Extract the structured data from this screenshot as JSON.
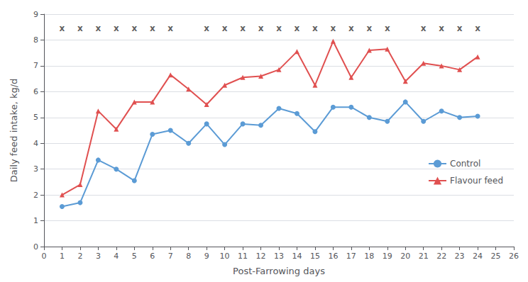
{
  "chart_data": {
    "type": "line",
    "x_label": "Post-Farrowing days",
    "y_label": "Daily feed intake, kg/d",
    "xlim": [
      0,
      26
    ],
    "xticks": [
      0,
      1,
      2,
      3,
      4,
      5,
      6,
      7,
      8,
      9,
      10,
      11,
      12,
      13,
      14,
      15,
      16,
      17,
      18,
      19,
      20,
      21,
      22,
      23,
      24,
      25,
      26
    ],
    "ylim": [
      0,
      9
    ],
    "yticks": [
      0,
      1,
      2,
      3,
      4,
      5,
      6,
      7,
      8,
      9
    ],
    "grid": true,
    "legend": "lower right",
    "series": [
      {
        "name": "Control",
        "color": "#5b9bd5",
        "marker": "circle",
        "x": [
          1,
          2,
          3,
          4,
          5,
          6,
          7,
          8,
          9,
          10,
          11,
          12,
          13,
          14,
          15,
          16,
          17,
          18,
          19,
          20,
          21,
          22,
          23,
          24
        ],
        "values": [
          1.55,
          1.7,
          3.35,
          3.0,
          2.55,
          4.35,
          4.5,
          4.0,
          4.75,
          3.95,
          4.75,
          4.7,
          5.35,
          5.15,
          4.45,
          5.4,
          5.4,
          5.0,
          4.85,
          5.6,
          4.85,
          5.25,
          5.0,
          5.05
        ]
      },
      {
        "name": "Flavour feed",
        "color": "#e05050",
        "marker": "triangle",
        "x": [
          1,
          2,
          3,
          4,
          5,
          6,
          7,
          8,
          9,
          10,
          11,
          12,
          13,
          14,
          15,
          16,
          17,
          18,
          19,
          20,
          21,
          22,
          23,
          24
        ],
        "values": [
          2.0,
          2.4,
          5.25,
          4.55,
          5.6,
          5.6,
          6.65,
          6.1,
          5.5,
          6.25,
          6.55,
          6.6,
          6.85,
          7.55,
          6.25,
          7.95,
          6.55,
          7.6,
          7.65,
          6.4,
          7.1,
          7.0,
          6.85,
          7.35
        ]
      }
    ],
    "annotations": [
      {
        "text": "x",
        "x": 1,
        "y": 8.45
      },
      {
        "text": "x",
        "x": 2,
        "y": 8.45
      },
      {
        "text": "x",
        "x": 3,
        "y": 8.45
      },
      {
        "text": "x",
        "x": 4,
        "y": 8.45
      },
      {
        "text": "x",
        "x": 5,
        "y": 8.45
      },
      {
        "text": "x",
        "x": 6,
        "y": 8.45
      },
      {
        "text": "x",
        "x": 7,
        "y": 8.45
      },
      {
        "text": "x",
        "x": 9,
        "y": 8.45
      },
      {
        "text": "x",
        "x": 10,
        "y": 8.45
      },
      {
        "text": "x",
        "x": 11,
        "y": 8.45
      },
      {
        "text": "x",
        "x": 12,
        "y": 8.45
      },
      {
        "text": "x",
        "x": 13,
        "y": 8.45
      },
      {
        "text": "x",
        "x": 14,
        "y": 8.45
      },
      {
        "text": "x",
        "x": 15,
        "y": 8.45
      },
      {
        "text": "x",
        "x": 16,
        "y": 8.45
      },
      {
        "text": "x",
        "x": 17,
        "y": 8.45
      },
      {
        "text": "x",
        "x": 18,
        "y": 8.45
      },
      {
        "text": "x",
        "x": 19,
        "y": 8.45
      },
      {
        "text": "x",
        "x": 21,
        "y": 8.45
      },
      {
        "text": "x",
        "x": 22,
        "y": 8.45
      },
      {
        "text": "x",
        "x": 23,
        "y": 8.45
      },
      {
        "text": "x",
        "x": 24,
        "y": 8.45
      }
    ]
  }
}
